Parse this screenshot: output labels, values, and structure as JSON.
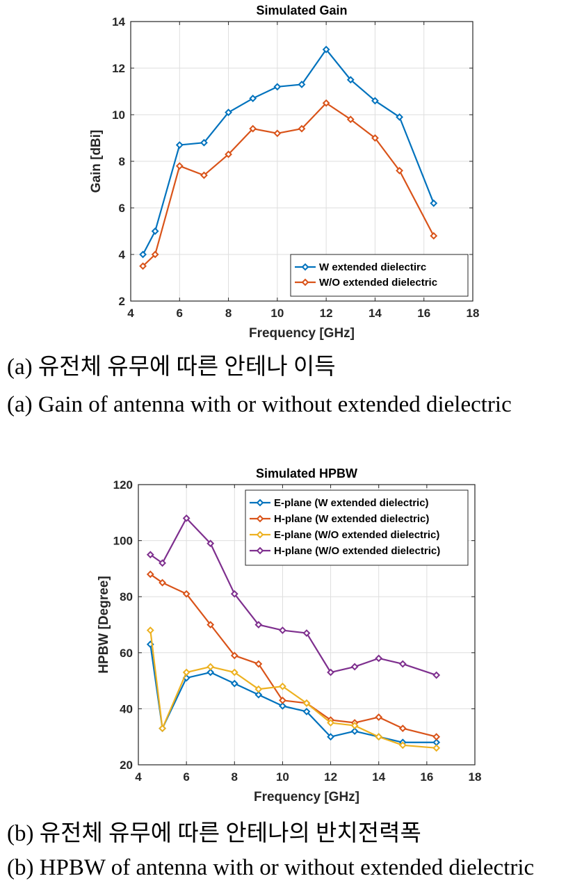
{
  "chart_data": [
    {
      "type": "line",
      "title": "Simulated Gain",
      "xlabel": "Frequency [GHz]",
      "ylabel": "Gain [dBi]",
      "xlim": [
        4,
        18
      ],
      "ylim": [
        2,
        14
      ],
      "xticks": [
        4,
        6,
        8,
        10,
        12,
        14,
        16,
        18
      ],
      "yticks": [
        2,
        4,
        6,
        8,
        10,
        12,
        14
      ],
      "grid": true,
      "legend_position": "bottom-right",
      "x": [
        4.5,
        5,
        6,
        7,
        8,
        9,
        10,
        11,
        12,
        13,
        14,
        15,
        16.4
      ],
      "series": [
        {
          "name": "W extended dielectirc",
          "color": "#0072BD",
          "values": [
            4.0,
            5.0,
            8.7,
            8.8,
            10.1,
            10.7,
            11.2,
            11.3,
            12.8,
            11.5,
            10.6,
            9.9,
            6.2
          ]
        },
        {
          "name": "W/O extended dielectric",
          "color": "#D95319",
          "values": [
            3.5,
            4.0,
            7.8,
            7.4,
            8.3,
            9.4,
            9.2,
            9.4,
            10.5,
            9.8,
            9.0,
            7.6,
            4.8
          ]
        }
      ]
    },
    {
      "type": "line",
      "title": "Simulated HPBW",
      "xlabel": "Frequency [GHz]",
      "ylabel": "HPBW [Degree]",
      "xlim": [
        4,
        18
      ],
      "ylim": [
        20,
        120
      ],
      "xticks": [
        4,
        6,
        8,
        10,
        12,
        14,
        16,
        18
      ],
      "yticks": [
        20,
        40,
        60,
        80,
        100,
        120
      ],
      "grid": true,
      "legend_position": "top-right",
      "x": [
        4.5,
        5,
        6,
        7,
        8,
        9,
        10,
        11,
        12,
        13,
        14,
        15,
        16.4
      ],
      "series": [
        {
          "name": "E-plane (W extended dielectric)",
          "color": "#0072BD",
          "values": [
            63,
            33,
            51,
            53,
            49,
            45,
            41,
            39,
            30,
            32,
            30,
            28,
            28
          ]
        },
        {
          "name": "H-plane (W extended dielectric)",
          "color": "#D95319",
          "values": [
            88,
            85,
            81,
            70,
            59,
            56,
            43,
            42,
            36,
            35,
            37,
            33,
            30
          ]
        },
        {
          "name": "E-plane (W/O extended dielectric)",
          "color": "#EDB120",
          "values": [
            68,
            33,
            53,
            55,
            53,
            47,
            48,
            42,
            35,
            34,
            30,
            27,
            26
          ]
        },
        {
          "name": "H-plane (W/O extended dielectric)",
          "color": "#7E2F8E",
          "values": [
            95,
            92,
            108,
            99,
            81,
            70,
            68,
            67,
            53,
            55,
            58,
            56,
            52
          ]
        }
      ]
    }
  ],
  "captions": {
    "a_korean": "(a) 유전체 유무에 따른 안테나 이득",
    "a_english": "(a) Gain of antenna with or without extended dielectric",
    "b_korean": "(b) 유전체 유무에 따른 안테나의 반치전력폭",
    "b_english": "(b) HPBW of antenna with or without extended dielectric"
  }
}
